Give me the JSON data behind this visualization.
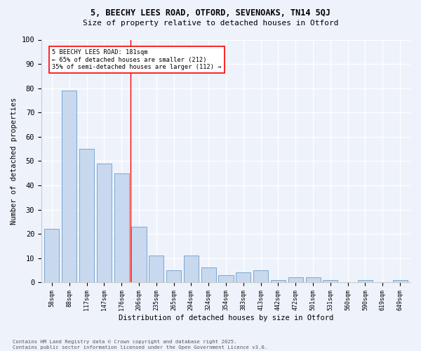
{
  "title1": "5, BEECHY LEES ROAD, OTFORD, SEVENOAKS, TN14 5QJ",
  "title2": "Size of property relative to detached houses in Otford",
  "xlabel": "Distribution of detached houses by size in Otford",
  "ylabel": "Number of detached properties",
  "categories": [
    "58sqm",
    "88sqm",
    "117sqm",
    "147sqm",
    "176sqm",
    "206sqm",
    "235sqm",
    "265sqm",
    "294sqm",
    "324sqm",
    "354sqm",
    "383sqm",
    "413sqm",
    "442sqm",
    "472sqm",
    "501sqm",
    "531sqm",
    "560sqm",
    "590sqm",
    "619sqm",
    "649sqm"
  ],
  "values": [
    22,
    79,
    55,
    49,
    45,
    23,
    11,
    5,
    11,
    6,
    3,
    4,
    5,
    1,
    2,
    2,
    1,
    0,
    1,
    0,
    1
  ],
  "bar_color": "#c8d8ee",
  "bar_edge_color": "#7aa8d0",
  "vline_x": 4.5,
  "vline_color": "red",
  "annotation_text": "5 BEECHY LEES ROAD: 181sqm\n← 65% of detached houses are smaller (212)\n35% of semi-detached houses are larger (112) →",
  "annotation_box_color": "white",
  "annotation_box_edge": "red",
  "ylim": [
    0,
    100
  ],
  "yticks": [
    0,
    10,
    20,
    30,
    40,
    50,
    60,
    70,
    80,
    90,
    100
  ],
  "footnote": "Contains HM Land Registry data © Crown copyright and database right 2025.\nContains public sector information licensed under the Open Government Licence v3.0.",
  "bg_color": "#eef2fb"
}
